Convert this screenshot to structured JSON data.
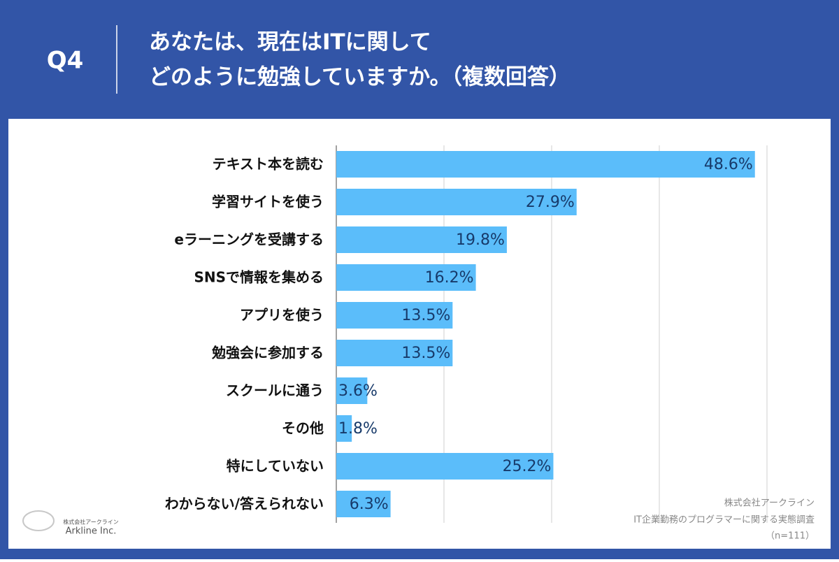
{
  "header": {
    "label": "Q4",
    "title_lines": [
      "あなたは、現在はITに関して",
      "どのように勉強していますか。（複数回答）"
    ]
  },
  "chart_data": {
    "type": "bar",
    "orientation": "horizontal",
    "categories": [
      "テキスト本を読む",
      "学習サイトを使う",
      "eラーニングを受講する",
      "SNSで情報を集める",
      "アプリを使う",
      "勉強会に参加する",
      "スクールに通う",
      "その他",
      "特にしていない",
      "わからない/答えられない"
    ],
    "values": [
      48.6,
      27.9,
      19.8,
      16.2,
      13.5,
      13.5,
      3.6,
      1.8,
      25.2,
      6.3
    ],
    "value_labels": [
      "48.6%",
      "27.9%",
      "19.8%",
      "16.2%",
      "13.5%",
      "13.5%",
      "3.6%",
      "1.8%",
      "25.2%",
      "6.3%"
    ],
    "color": "#5bbdfa",
    "xlim": [
      0,
      50
    ],
    "xticks": [
      0,
      12.5,
      25,
      37.5,
      50
    ],
    "grid": true
  },
  "source": [
    "株式会社アークライン",
    "IT企業勤務のプログラマーに関する実態調査",
    "（n=111）"
  ],
  "logo": {
    "small": "株式会社アークライン",
    "name": "Arkline Inc."
  }
}
